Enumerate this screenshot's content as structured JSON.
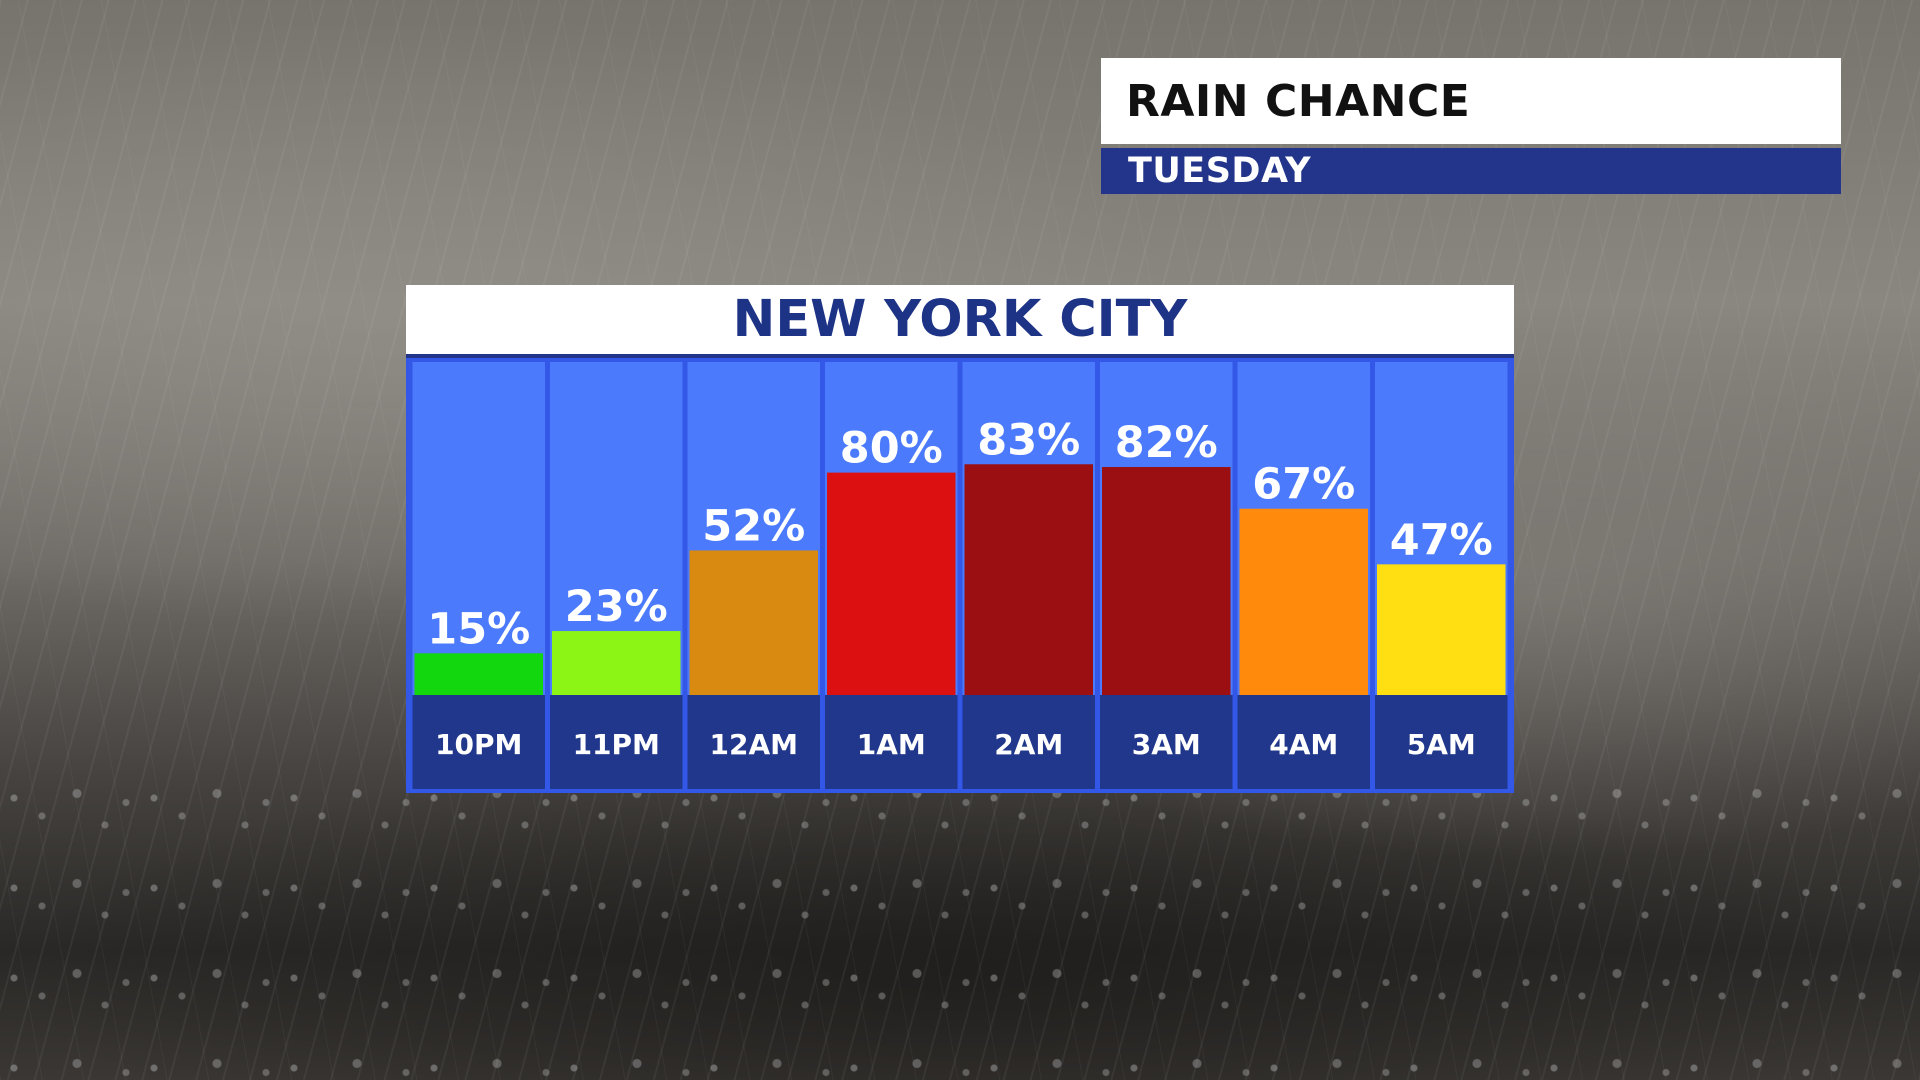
{
  "title_box": {
    "title": "RAIN CHANCE",
    "subtitle": "TUESDAY"
  },
  "panel": {
    "header": "NEW YORK CITY"
  },
  "chart_data": {
    "type": "bar",
    "title": "NEW YORK CITY",
    "categories": [
      "10PM",
      "11PM",
      "12AM",
      "1AM",
      "2AM",
      "3AM",
      "4AM",
      "5AM"
    ],
    "values": [
      15,
      23,
      52,
      80,
      83,
      82,
      67,
      47
    ],
    "value_labels": [
      "15%",
      "23%",
      "52%",
      "80%",
      "83%",
      "82%",
      "67%",
      "47%"
    ],
    "colors": [
      "#12d60e",
      "#8cf515",
      "#d98a10",
      "#dc1010",
      "#9b0f12",
      "#9b0f12",
      "#ff8a0c",
      "#ffde12"
    ],
    "ylim": [
      0,
      100
    ],
    "grid": false,
    "legend": "none",
    "column_background": "#4b7bfc",
    "label_background": "#21378c"
  }
}
